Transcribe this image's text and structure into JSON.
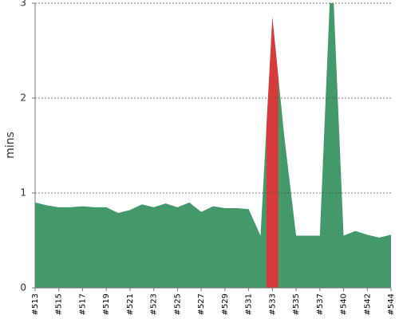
{
  "chart_data": {
    "type": "area",
    "ylabel": "mins",
    "categories": [
      "#513",
      null,
      "#515",
      null,
      "#517",
      null,
      "#519",
      null,
      "#521",
      null,
      "#523",
      null,
      "#525",
      null,
      "#527",
      null,
      "#529",
      null,
      "#531",
      null,
      "#533",
      null,
      "#535",
      null,
      "#537",
      null,
      "#540",
      null,
      "#542",
      null,
      "#544"
    ],
    "values": [
      0.9,
      0.87,
      0.85,
      0.85,
      0.86,
      0.85,
      0.85,
      0.79,
      0.82,
      0.88,
      0.85,
      0.89,
      0.85,
      0.9,
      0.8,
      0.86,
      0.84,
      0.84,
      0.83,
      0.55,
      2.85,
      1.6,
      0.55,
      0.55,
      0.55,
      3.5,
      0.55,
      0.6,
      0.56,
      0.53,
      0.56
    ],
    "color": "#44996a",
    "colors": [
      "#44996a",
      "#44996a",
      "#44996a",
      "#44996a",
      "#44996a",
      "#44996a",
      "#44996a",
      "#44996a",
      "#44996a",
      "#44996a",
      "#44996a",
      "#44996a",
      "#44996a",
      "#44996a",
      "#44996a",
      "#44996a",
      "#44996a",
      "#44996a",
      "#44996a",
      "#44996a",
      "#d63a3a",
      "#44996a",
      "#44996a",
      "#44996a",
      "#44996a",
      "#44996a",
      "#44996a",
      "#44996a",
      "#44996a",
      "#44996a",
      "#44996a"
    ],
    "ylim": [
      0,
      3
    ],
    "yticks": [
      0,
      1,
      2,
      3
    ],
    "grid": true
  }
}
